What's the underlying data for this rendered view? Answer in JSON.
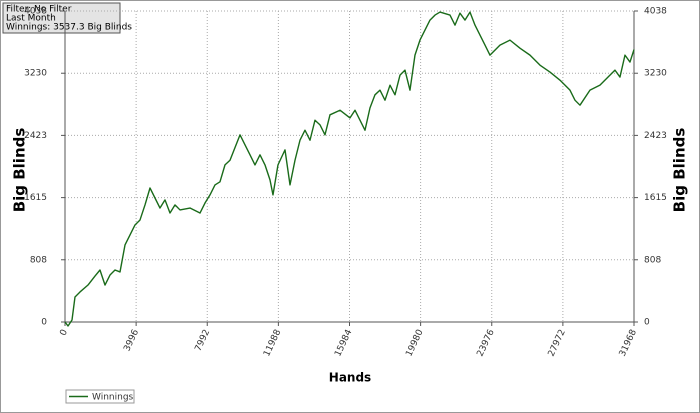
{
  "chart_data": {
    "type": "line",
    "annotations": [
      "Filter: No Filter",
      "Last Month",
      "Winnings: 3537.3 Big Blinds"
    ],
    "xlabel": "Hands",
    "ylabel": "Big Blinds",
    "y2label": "Big Blinds",
    "legend": "bottom-left",
    "grid": true,
    "xlim": [
      0,
      31968
    ],
    "xticks": [
      0,
      3996,
      7992,
      11988,
      15984,
      19980,
      23976,
      27972,
      31968
    ],
    "ylim": [
      0,
      4038
    ],
    "yticks": [
      0,
      808,
      1615,
      2423,
      3230,
      4038
    ],
    "y2lim": [
      0,
      4038
    ],
    "y2ticks": [
      0,
      808,
      1615,
      2423,
      3230,
      4038
    ],
    "x": [
      0,
      169,
      393,
      562,
      843,
      1292,
      1685,
      1966,
      2247,
      2528,
      2809,
      3090,
      3371,
      3652,
      3933,
      4214,
      4494,
      4775,
      5056,
      5337,
      5618,
      5899,
      6180,
      6461,
      7023,
      7584,
      7865,
      8146,
      8427,
      8708,
      8989,
      9270,
      9832,
      10112,
      10393,
      10674,
      10955,
      11236,
      11517,
      11685,
      11966,
      12360,
      12641,
      12922,
      13202,
      13483,
      13764,
      14045,
      14326,
      14607,
      14888,
      15450,
      16011,
      16292,
      16854,
      17135,
      17416,
      17697,
      17978,
      18259,
      18540,
      18820,
      19101,
      19382,
      19663,
      19944,
      20225,
      20506,
      20787,
      21068,
      21629,
      21910,
      22191,
      22472,
      22753,
      23034,
      23315,
      23596,
      23877,
      24438,
      25000,
      25562,
      26124,
      26686,
      27247,
      27809,
      28371,
      28652,
      28933,
      29495,
      30056,
      30618,
      30899,
      31180,
      31461,
      31742,
      31968
    ],
    "series": [
      {
        "name": "Winnings",
        "color": "#1a6b1a",
        "values": [
          0,
          -52,
          26,
          325,
          390,
          480,
          597,
          675,
          480,
          610,
          675,
          650,
          1000,
          1130,
          1260,
          1325,
          1520,
          1740,
          1610,
          1480,
          1585,
          1415,
          1520,
          1455,
          1480,
          1415,
          1545,
          1650,
          1780,
          1820,
          2040,
          2100,
          2430,
          2300,
          2170,
          2040,
          2170,
          2040,
          1845,
          1650,
          2040,
          2235,
          1780,
          2100,
          2360,
          2490,
          2360,
          2620,
          2560,
          2430,
          2690,
          2750,
          2650,
          2750,
          2490,
          2780,
          2950,
          3010,
          2880,
          3075,
          2950,
          3205,
          3270,
          3010,
          3465,
          3660,
          3790,
          3920,
          3985,
          4024,
          3985,
          3855,
          4010,
          3920,
          4024,
          3855,
          3725,
          3595,
          3465,
          3595,
          3660,
          3555,
          3465,
          3335,
          3245,
          3140,
          3010,
          2880,
          2815,
          3010,
          3075,
          3205,
          3270,
          3180,
          3465,
          3375,
          3537.3
        ]
      }
    ]
  }
}
